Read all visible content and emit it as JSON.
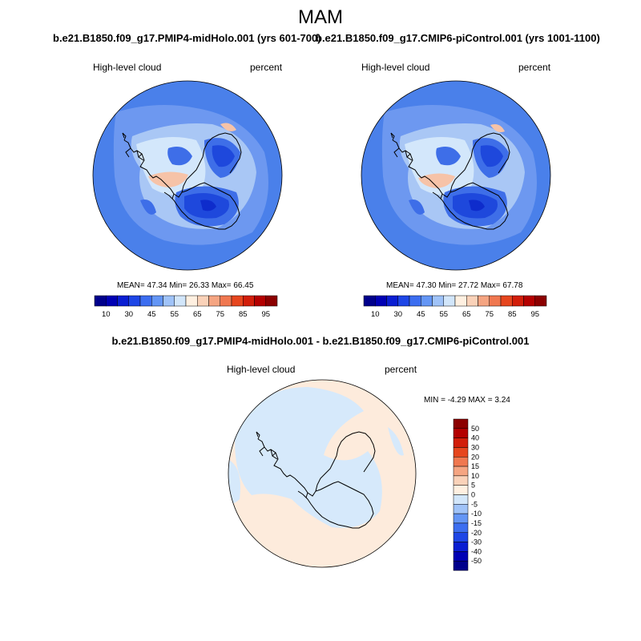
{
  "figure": {
    "season": "MAM"
  },
  "panels": [
    {
      "title": "b.e21.B1850.f09_g17.PMIP4-midHolo.001 (yrs 601-700)",
      "variable": "High-level cloud",
      "units": "percent",
      "stats": "MEAN=  47.34   Min=  26.33   Max=  66.45"
    },
    {
      "title": "b.e21.B1850.f09_g17.CMIP6-piControl.001 (yrs 1001-1100)",
      "variable": "High-level cloud",
      "units": "percent",
      "stats": "MEAN=  47.30   Min=  27.72   Max=  67.78"
    },
    {
      "title": "b.e21.B1850.f09_g17.PMIP4-midHolo.001 - b.e21.B1850.f09_g17.CMIP6-piControl.001",
      "variable": "High-level cloud",
      "units": "percent",
      "stats": "MIN =  -4.29 MAX =   3.24"
    }
  ],
  "colorbar_abs": {
    "tick_labels": [
      "10",
      "30",
      "45",
      "55",
      "65",
      "75",
      "85",
      "95"
    ],
    "colors": [
      "#00008c",
      "#0000b4",
      "#0a1ed2",
      "#1e46e6",
      "#3c6ef0",
      "#6496f5",
      "#a0c3f8",
      "#d2e6fa",
      "#fff0e1",
      "#fad2b9",
      "#f5a582",
      "#f07850",
      "#e6461e",
      "#d21e0a",
      "#b40000",
      "#8c0000"
    ]
  },
  "colorbar_diff": {
    "tick_labels": [
      "50",
      "40",
      "30",
      "20",
      "15",
      "10",
      "5",
      "0",
      "-5",
      "-10",
      "-15",
      "-20",
      "-30",
      "-40",
      "-50"
    ],
    "colors": [
      "#8c0000",
      "#b40000",
      "#d21e0a",
      "#e6461e",
      "#f07850",
      "#f5a582",
      "#fad2b9",
      "#fff0e1",
      "#d2e6fa",
      "#a0c3f8",
      "#6496f5",
      "#3c6ef0",
      "#1e46e6",
      "#0a1ed2",
      "#0000b4",
      "#00008c"
    ]
  },
  "map_colors": {
    "ocean_bg": "#4a80ea",
    "light_blue": "#6d98f0",
    "pale_blue": "#a9c7f5",
    "very_pale": "#d3e7fb",
    "medium_blue": "#3e6ee8",
    "deep_blue": "#1e48dc",
    "deepest_blue": "#0e2ccc",
    "peach": "#fde8d8",
    "salmon": "#f6c3a8",
    "diff_blue": "#d6e9fb",
    "diff_peach": "#fdebdc"
  }
}
